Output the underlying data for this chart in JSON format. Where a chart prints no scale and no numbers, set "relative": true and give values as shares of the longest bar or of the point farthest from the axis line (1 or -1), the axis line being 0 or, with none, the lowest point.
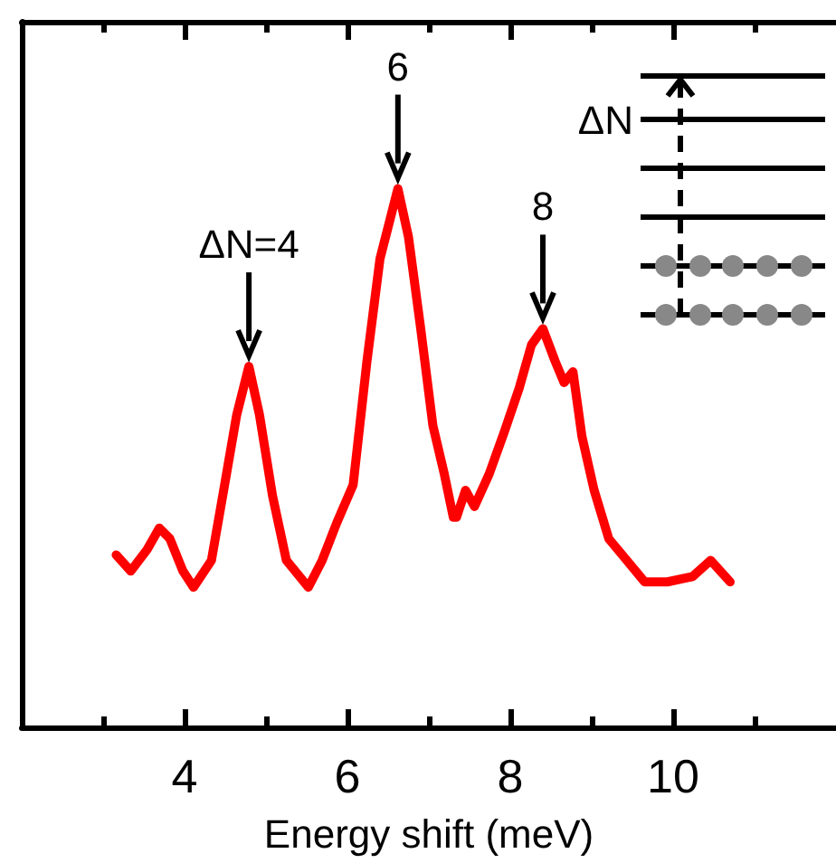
{
  "chart_data": {
    "type": "line",
    "relative": true,
    "xlabel": "Energy shift (meV)",
    "x": [
      3.16,
      3.34,
      3.54,
      3.69,
      3.82,
      3.98,
      4.11,
      4.33,
      4.48,
      4.64,
      4.79,
      4.92,
      5.08,
      5.25,
      5.52,
      5.69,
      5.87,
      6.07,
      6.24,
      6.4,
      6.62,
      6.75,
      6.9,
      7.05,
      7.19,
      7.3,
      7.34,
      7.45,
      7.56,
      7.74,
      7.93,
      8.11,
      8.26,
      8.4,
      8.55,
      8.66,
      8.77,
      8.88,
      9.03,
      9.21,
      9.43,
      9.65,
      9.93,
      10.24,
      10.46,
      10.7
    ],
    "series": [
      {
        "color": "#ff0000",
        "values": [
          0.32,
          0.29,
          0.33,
          0.37,
          0.35,
          0.29,
          0.26,
          0.31,
          0.44,
          0.58,
          0.67,
          0.58,
          0.43,
          0.31,
          0.26,
          0.31,
          0.38,
          0.45,
          0.68,
          0.87,
          1.0,
          0.91,
          0.74,
          0.56,
          0.47,
          0.39,
          0.39,
          0.44,
          0.41,
          0.47,
          0.55,
          0.63,
          0.71,
          0.74,
          0.68,
          0.64,
          0.66,
          0.54,
          0.44,
          0.35,
          0.31,
          0.27,
          0.27,
          0.28,
          0.31,
          0.27
        ]
      }
    ],
    "xlim": [
      2,
      12
    ],
    "xticks": [
      {
        "value": 3,
        "label": null
      },
      4,
      {
        "value": 5,
        "label": null
      },
      6,
      {
        "value": 7,
        "label": null
      },
      8,
      {
        "value": 9,
        "label": null
      },
      10,
      {
        "value": 11,
        "label": null
      }
    ],
    "annotations": [
      {
        "text": "ΔN=4",
        "x": 4.79,
        "y": 0.67
      },
      {
        "text": "6",
        "x": 6.62,
        "y": 1.0
      },
      {
        "text": "8",
        "x": 8.4,
        "y": 0.74
      },
      "ΔN"
    ],
    "marker": "none",
    "line_style": "solid"
  }
}
